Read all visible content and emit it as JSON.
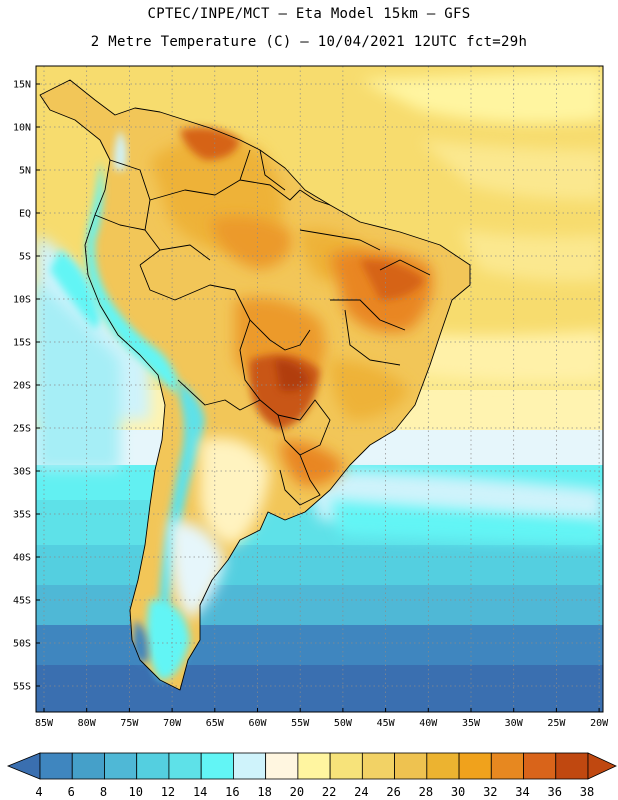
{
  "header": {
    "line1": "CPTEC/INPE/MCT –  Eta Model 15km – GFS",
    "line2": "2 Metre Temperature (C) – 10/04/2021 12UTC fct=29h"
  },
  "map": {
    "lat_labels": [
      "15N",
      "10N",
      "5N",
      "EQ",
      "5S",
      "10S",
      "15S",
      "20S",
      "25S",
      "30S",
      "35S",
      "40S",
      "45S",
      "50S",
      "55S"
    ],
    "lon_labels": [
      "85W",
      "80W",
      "75W",
      "70W",
      "65W",
      "60W",
      "55W",
      "50W",
      "45W",
      "40W",
      "35W",
      "30W",
      "25W",
      "20W"
    ]
  },
  "colorbar": {
    "labels": [
      "4",
      "6",
      "8",
      "10",
      "12",
      "14",
      "16",
      "18",
      "20",
      "22",
      "24",
      "26",
      "28",
      "30",
      "32",
      "34",
      "36",
      "38"
    ],
    "colors": [
      "#3a6fb0",
      "#3f86bf",
      "#45a0c9",
      "#4fb8d6",
      "#54cfe0",
      "#5ee1e8",
      "#62f5f5",
      "#cff3fb",
      "#fff6e0",
      "#fff5a0",
      "#f7e37a",
      "#f2d265",
      "#eec250",
      "#ecb330",
      "#f0a21c",
      "#e78820",
      "#d9641a",
      "#c04810"
    ],
    "under_color": "#3a6fb0",
    "over_color": "#c04810"
  }
}
